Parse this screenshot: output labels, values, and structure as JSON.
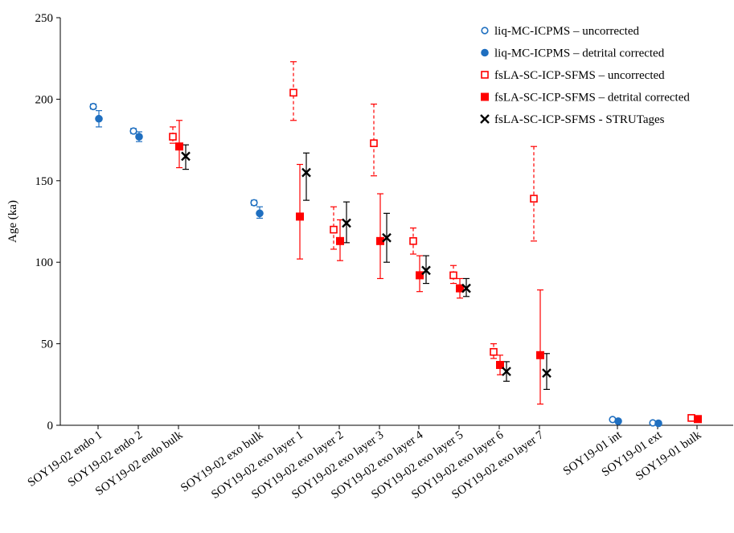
{
  "chart_data": {
    "type": "scatter",
    "ylabel": "Age (ka)",
    "ylim": [
      0,
      250
    ],
    "yticks": [
      0,
      50,
      100,
      150,
      200,
      250
    ],
    "grid": false,
    "legend_position": "top-right",
    "categories": [
      "SOY19-02 endo 1",
      "SOY19-02 endo 2",
      "SOY19-02 endo bulk",
      "SOY19-02 exo bulk",
      "SOY19-02 exo layer 1",
      "SOY19-02 exo layer 2",
      "SOY19-02 exo layer 3",
      "SOY19-02 exo layer 4",
      "SOY19-02 exo layer 5",
      "SOY19-02 exo layer 6",
      "SOY19-02 exo layer 7",
      "SOY19-01 int",
      "SOY19-01 ext",
      "SOY19-01 bulk"
    ],
    "colors": {
      "blue": "#1f6fc0",
      "red": "#ff0000",
      "black": "#000000"
    },
    "series": [
      {
        "name": "liq-MC-ICPMS – uncorrected",
        "marker": "open-circle",
        "color": "#1f6fc0",
        "points": [
          {
            "category": "SOY19-02 endo 1",
            "y": 195.5,
            "err_low": 1.5,
            "err_high": 1.5
          },
          {
            "category": "SOY19-02 endo 2",
            "y": 180.5,
            "err_low": 1.5,
            "err_high": 1.5
          },
          {
            "category": "SOY19-02 exo bulk",
            "y": 136.5,
            "err_low": 1.5,
            "err_high": 1.5
          },
          {
            "category": "SOY19-01 int",
            "y": 3.5,
            "err_low": 0,
            "err_high": 0
          },
          {
            "category": "SOY19-01 ext",
            "y": 1.5,
            "err_low": 0,
            "err_high": 0
          }
        ]
      },
      {
        "name": "liq-MC-ICPMS – detrital corrected",
        "marker": "filled-circle",
        "color": "#1f6fc0",
        "points": [
          {
            "category": "SOY19-02 endo 1",
            "y": 188,
            "err_low": 5,
            "err_high": 5
          },
          {
            "category": "SOY19-02 endo 2",
            "y": 177,
            "err_low": 3,
            "err_high": 3
          },
          {
            "category": "SOY19-02 exo bulk",
            "y": 130,
            "err_low": 3,
            "err_high": 4
          },
          {
            "category": "SOY19-01 int",
            "y": 2.5,
            "err_low": 0,
            "err_high": 0
          },
          {
            "category": "SOY19-01 ext",
            "y": 1.2,
            "err_low": 0,
            "err_high": 0
          }
        ]
      },
      {
        "name": "fsLA-SC-ICP-SFMS – uncorrected",
        "marker": "open-square",
        "color": "#ff0000",
        "dashed_error": true,
        "points": [
          {
            "category": "SOY19-02 endo bulk",
            "y": 177,
            "err_low": 4,
            "err_high": 6
          },
          {
            "category": "SOY19-02 exo layer 1",
            "y": 204,
            "err_low": 17,
            "err_high": 19
          },
          {
            "category": "SOY19-02 exo layer 2",
            "y": 120,
            "err_low": 12,
            "err_high": 14
          },
          {
            "category": "SOY19-02 exo layer 3",
            "y": 173,
            "err_low": 20,
            "err_high": 24
          },
          {
            "category": "SOY19-02 exo layer 4",
            "y": 113,
            "err_low": 8,
            "err_high": 8
          },
          {
            "category": "SOY19-02 exo layer 5",
            "y": 92,
            "err_low": 5,
            "err_high": 6
          },
          {
            "category": "SOY19-02 exo layer 6",
            "y": 45,
            "err_low": 4,
            "err_high": 5
          },
          {
            "category": "SOY19-02 exo layer 7",
            "y": 139,
            "err_low": 26,
            "err_high": 32
          },
          {
            "category": "SOY19-01 bulk",
            "y": 4.5,
            "err_low": 0,
            "err_high": 0
          }
        ]
      },
      {
        "name": "fsLA-SC-ICP-SFMS – detrital corrected",
        "marker": "filled-square",
        "color": "#ff0000",
        "points": [
          {
            "category": "SOY19-02 endo bulk",
            "y": 171,
            "err_low": 13,
            "err_high": 16
          },
          {
            "category": "SOY19-02 exo layer 1",
            "y": 128,
            "err_low": 26,
            "err_high": 32
          },
          {
            "category": "SOY19-02 exo layer 2",
            "y": 113,
            "err_low": 12,
            "err_high": 13
          },
          {
            "category": "SOY19-02 exo layer 3",
            "y": 113,
            "err_low": 23,
            "err_high": 29
          },
          {
            "category": "SOY19-02 exo layer 4",
            "y": 92,
            "err_low": 10,
            "err_high": 12
          },
          {
            "category": "SOY19-02 exo layer 5",
            "y": 84,
            "err_low": 6,
            "err_high": 6
          },
          {
            "category": "SOY19-02 exo layer 6",
            "y": 37,
            "err_low": 6,
            "err_high": 6
          },
          {
            "category": "SOY19-02 exo layer 7",
            "y": 43,
            "err_low": 30,
            "err_high": 40
          },
          {
            "category": "SOY19-01 bulk",
            "y": 3.8,
            "err_low": 0,
            "err_high": 0
          }
        ]
      },
      {
        "name": "fsLA-SC-ICP-SFMS - STRUTages",
        "marker": "x",
        "color": "#000000",
        "points": [
          {
            "category": "SOY19-02 endo bulk",
            "y": 165,
            "err_low": 8,
            "err_high": 7
          },
          {
            "category": "SOY19-02 exo layer 1",
            "y": 155,
            "err_low": 17,
            "err_high": 12
          },
          {
            "category": "SOY19-02 exo layer 2",
            "y": 124,
            "err_low": 12,
            "err_high": 13
          },
          {
            "category": "SOY19-02 exo layer 3",
            "y": 115,
            "err_low": 15,
            "err_high": 15
          },
          {
            "category": "SOY19-02 exo layer 4",
            "y": 95,
            "err_low": 8,
            "err_high": 9
          },
          {
            "category": "SOY19-02 exo layer 5",
            "y": 84,
            "err_low": 5,
            "err_high": 6
          },
          {
            "category": "SOY19-02 exo layer 6",
            "y": 33,
            "err_low": 6,
            "err_high": 6
          },
          {
            "category": "SOY19-02 exo layer 7",
            "y": 32,
            "err_low": 10,
            "err_high": 12
          }
        ]
      }
    ]
  }
}
